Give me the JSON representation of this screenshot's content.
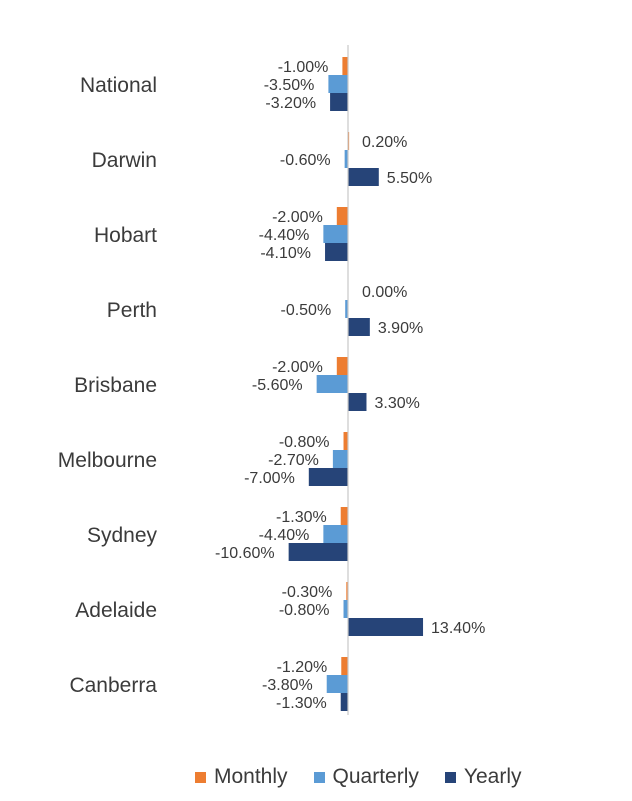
{
  "chart_data": {
    "type": "bar",
    "orientation": "horizontal",
    "categories": [
      "National",
      "Darwin",
      "Hobart",
      "Perth",
      "Brisbane",
      "Melbourne",
      "Sydney",
      "Adelaide",
      "Canberra"
    ],
    "series": [
      {
        "name": "Monthly",
        "color": "#ed7d31",
        "values": [
          -1.0,
          0.2,
          -2.0,
          0.0,
          -2.0,
          -0.8,
          -1.3,
          -0.3,
          -1.2
        ],
        "labels": [
          "-1.00%",
          "0.20%",
          "-2.00%",
          "0.00%",
          "-2.00%",
          "-0.80%",
          "-1.30%",
          "-0.30%",
          "-1.20%"
        ]
      },
      {
        "name": "Quarterly",
        "color": "#5b9bd5",
        "values": [
          -3.5,
          -0.6,
          -4.4,
          -0.5,
          -5.6,
          -2.7,
          -4.4,
          -0.8,
          -3.8
        ],
        "labels": [
          "-3.50%",
          "-0.60%",
          "-4.40%",
          "-0.50%",
          "-5.60%",
          "-2.70%",
          "-4.40%",
          "-0.80%",
          "-3.80%"
        ]
      },
      {
        "name": "Yearly",
        "color": "#264478",
        "values": [
          -3.2,
          5.5,
          -4.1,
          3.9,
          3.3,
          -7.0,
          -10.6,
          13.4,
          -1.3
        ],
        "labels": [
          "-3.20%",
          "5.50%",
          "-4.10%",
          "3.90%",
          "3.30%",
          "-7.00%",
          "-10.60%",
          "13.40%",
          "-1.30%"
        ]
      }
    ],
    "legend_position": "bottom",
    "grid": false,
    "axis_color": "#c9c9c9"
  }
}
